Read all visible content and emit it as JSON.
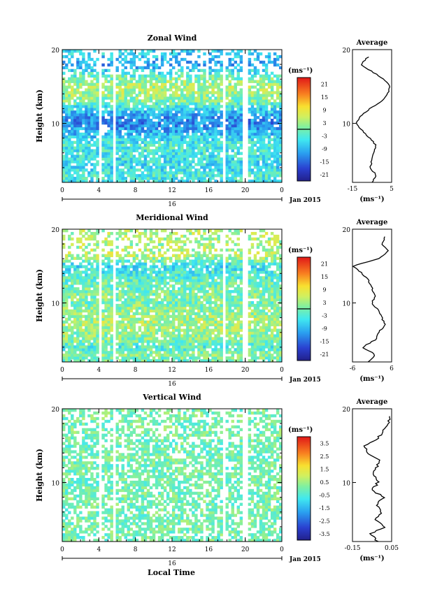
{
  "page": {
    "xlabel": "Local Time",
    "date_day": "16",
    "date_label": "Jan 2015"
  },
  "panels": [
    {
      "id": "zonal",
      "title": "Zonal Wind",
      "ylabel": "Height (km)",
      "cbar_unit": "(ms⁻¹)",
      "cbar_ticks": [
        "21",
        "15",
        "9",
        "3",
        "-3",
        "-9",
        "-15",
        "-21"
      ],
      "avg_title": "Average",
      "avg_xticks": [
        "-15",
        "5"
      ],
      "avg_unit": "(ms⁻¹)"
    },
    {
      "id": "meridional",
      "title": "Meridional Wind",
      "ylabel": "Height (km)",
      "cbar_unit": "(ms⁻¹)",
      "cbar_ticks": [
        "21",
        "15",
        "9",
        "3",
        "-3",
        "-9",
        "-15",
        "-21"
      ],
      "avg_title": "Average",
      "avg_xticks": [
        "-6",
        "6"
      ],
      "avg_unit": "(ms⁻¹)"
    },
    {
      "id": "vertical",
      "title": "Vertical Wind",
      "ylabel": "Height (km)",
      "cbar_unit": "(ms⁻¹)",
      "cbar_ticks": [
        "3.5",
        "2.5",
        "1.5",
        "0.5",
        "-0.5",
        "-1.5",
        "-2.5",
        "-3.5"
      ],
      "avg_title": "Average",
      "avg_xticks": [
        "-0.15",
        "0.05"
      ],
      "avg_unit": "(ms⁻¹)"
    }
  ],
  "chart_data": [
    {
      "type": "heatmap",
      "title": "Zonal Wind",
      "xlabel": "",
      "ylabel": "Height (km)",
      "x_ticks": [
        "0",
        "4",
        "8",
        "12",
        "16",
        "20",
        "0"
      ],
      "y_ticks": [
        "20",
        "10"
      ],
      "x_range_hours": [
        0,
        24
      ],
      "y_range_km": [
        2,
        20
      ],
      "colorbar": {
        "unit": "(ms⁻¹)",
        "range": [
          -24,
          24
        ],
        "ticks": [
          21,
          15,
          9,
          3,
          -3,
          -9,
          -15,
          -21
        ]
      },
      "data_gaps_hours": [
        4.1,
        5.8,
        17.7,
        20.0
      ],
      "profile": {
        "title": "Average",
        "xlim": [
          -15,
          5
        ],
        "height_km": [
          2,
          3,
          4,
          5,
          6,
          7,
          8,
          9,
          10,
          11,
          12,
          13,
          14,
          15,
          16,
          17,
          18,
          19
        ],
        "values": [
          -5,
          -3,
          -6,
          -5,
          -4,
          -3,
          -6,
          -10,
          -13,
          -11,
          -6,
          0,
          3,
          4,
          1,
          -5,
          -11,
          -7
        ]
      }
    },
    {
      "type": "heatmap",
      "title": "Meridional Wind",
      "xlabel": "",
      "ylabel": "Height (km)",
      "x_ticks": [
        "0",
        "4",
        "8",
        "12",
        "16",
        "20",
        "0"
      ],
      "y_ticks": [
        "20",
        "10"
      ],
      "x_range_hours": [
        0,
        24
      ],
      "y_range_km": [
        2,
        20
      ],
      "colorbar": {
        "unit": "(ms⁻¹)",
        "range": [
          -24,
          24
        ],
        "ticks": [
          21,
          15,
          9,
          3,
          -3,
          -9,
          -15,
          -21
        ]
      },
      "data_gaps_hours": [
        4.1,
        5.8,
        17.7,
        20.0
      ],
      "profile": {
        "title": "Average",
        "xlim": [
          -6,
          6
        ],
        "height_km": [
          2,
          3,
          4,
          5,
          6,
          7,
          8,
          9,
          10,
          11,
          12,
          13,
          14,
          15,
          16,
          17,
          18,
          19
        ],
        "values": [
          -1,
          1,
          -3,
          1,
          2,
          4,
          3,
          2,
          0,
          1,
          0,
          -1,
          -3,
          -6,
          2,
          5,
          3,
          4
        ]
      }
    },
    {
      "type": "heatmap",
      "title": "Vertical Wind",
      "xlabel": "Local Time",
      "ylabel": "Height (km)",
      "x_ticks": [
        "0",
        "4",
        "8",
        "12",
        "16",
        "20",
        "0"
      ],
      "y_ticks": [
        "20",
        "10"
      ],
      "x_range_hours": [
        0,
        24
      ],
      "y_range_km": [
        2,
        20
      ],
      "colorbar": {
        "unit": "(ms⁻¹)",
        "range": [
          -4,
          4
        ],
        "ticks": [
          3.5,
          2.5,
          1.5,
          0.5,
          -0.5,
          -1.5,
          -2.5,
          -3.5
        ]
      },
      "data_gaps_hours": [
        4.1,
        5.8,
        17.7,
        20.0
      ],
      "profile": {
        "title": "Average",
        "xlim": [
          -0.15,
          0.05
        ],
        "height_km": [
          2,
          3,
          4,
          5,
          6,
          7,
          8,
          9,
          10,
          11,
          12,
          13,
          14,
          15,
          16,
          17,
          18,
          19
        ],
        "values": [
          -0.02,
          -0.06,
          0.02,
          -0.04,
          0.0,
          -0.03,
          0.01,
          -0.05,
          -0.02,
          -0.04,
          -0.03,
          -0.01,
          -0.07,
          -0.09,
          -0.02,
          0.01,
          0.03,
          0.04
        ]
      }
    }
  ]
}
